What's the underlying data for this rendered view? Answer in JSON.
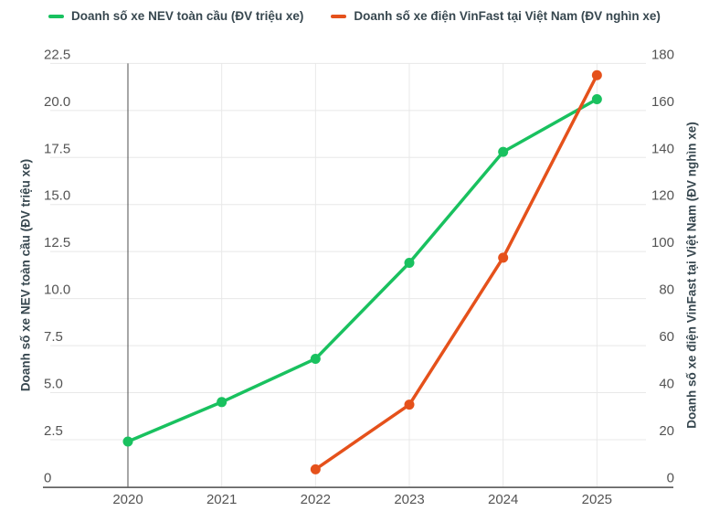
{
  "colors": {
    "background": "#FFFFFF",
    "grid_light": "#E8E8E8",
    "axis_dark": "#4D4D4D",
    "tick_text": "#545454",
    "title_text": "#37474F",
    "series_green": "#19C15F",
    "series_orange": "#E5511B"
  },
  "legend": {
    "position": "top",
    "items": [
      {
        "label": "Doanh số xe NEV toàn cầu (ĐV triệu xe)",
        "color": "#19C15F"
      },
      {
        "label": "Doanh số xe điện VinFast tại Việt Nam (ĐV nghìn xe)",
        "color": "#E5511B"
      }
    ]
  },
  "chart_data": {
    "type": "line",
    "x": [
      "2020",
      "2021",
      "2022",
      "2023",
      "2024",
      "2025"
    ],
    "series": [
      {
        "name": "Doanh số xe NEV toàn cầu (ĐV triệu xe)",
        "axis": "left",
        "color": "#19C15F",
        "values": [
          2.4,
          4.5,
          6.8,
          11.9,
          17.8,
          20.6
        ]
      },
      {
        "name": "Doanh số xe điện VinFast tại Việt Nam (ĐV nghìn xe)",
        "axis": "right",
        "color": "#E5511B",
        "values": [
          null,
          null,
          7.4,
          34.9,
          97.4,
          175
        ]
      }
    ],
    "left_axis": {
      "title": "Doanh số xe NEV toàn cầu (ĐV triệu xe)",
      "range": [
        0,
        22.5
      ],
      "ticks": [
        0,
        2.5,
        5,
        7.5,
        10,
        12.5,
        15,
        17.5,
        20,
        22.5
      ],
      "tick_labels": [
        "0",
        "2.5",
        "5.0",
        "7.5",
        "10.0",
        "12.5",
        "15.0",
        "17.5",
        "20.0",
        "22.5"
      ]
    },
    "right_axis": {
      "title": "Doanh số xe điện VinFast tại Việt Nam (ĐV nghìn xe)",
      "range": [
        0,
        180
      ],
      "ticks": [
        0,
        20,
        40,
        60,
        80,
        100,
        120,
        140,
        160,
        180
      ],
      "tick_labels": [
        "0",
        "20",
        "40",
        "60",
        "80",
        "100",
        "120",
        "140",
        "160",
        "180"
      ]
    },
    "grid": true,
    "markers": true
  }
}
